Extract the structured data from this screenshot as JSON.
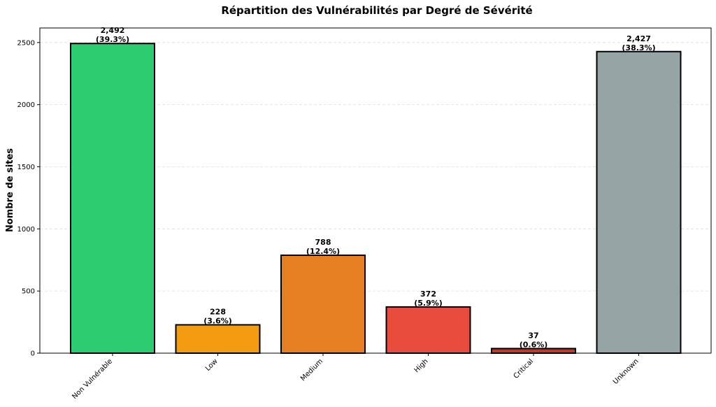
{
  "chart_data": {
    "type": "bar",
    "title": "Répartition des Vulnérabilités par Degré de Sévérité",
    "xlabel": "",
    "ylabel": "Nombre de sites",
    "categories": [
      "Non Vulnérable",
      "Low",
      "Medium",
      "High",
      "Critical",
      "Unknown"
    ],
    "values": [
      2492,
      228,
      788,
      372,
      37,
      2427
    ],
    "value_labels": [
      "2,492",
      "228",
      "788",
      "372",
      "37",
      "2,427"
    ],
    "percent_labels": [
      "(39.3%)",
      "(3.6%)",
      "(12.4%)",
      "(5.9%)",
      "(0.6%)",
      "(38.3%)"
    ],
    "colors": [
      "#2ecc71",
      "#f39c12",
      "#e67e22",
      "#e74c3c",
      "#c0392b",
      "#95a5a6"
    ],
    "ylim": [
      0,
      2617
    ],
    "yticks": [
      0,
      500,
      1000,
      1500,
      2000,
      2500
    ],
    "grid": true,
    "legend": "none"
  }
}
